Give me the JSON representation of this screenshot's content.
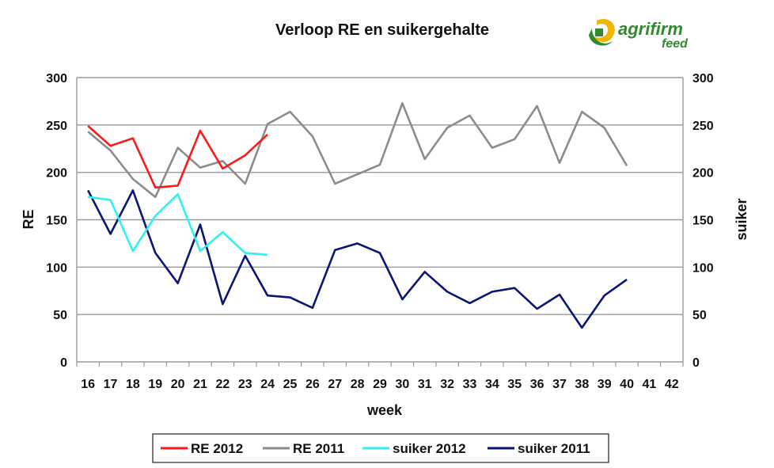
{
  "logo": {
    "brand": "agrifirm",
    "sub": "feed"
  },
  "chart_data": {
    "type": "line",
    "title": "Verloop RE en suikergehalte",
    "xlabel": "week",
    "ylabel": "RE",
    "y2label": "suiker",
    "ylim": [
      0,
      300
    ],
    "y2lim": [
      0,
      300
    ],
    "yticks": [
      0,
      50,
      100,
      150,
      200,
      250,
      300
    ],
    "grid": true,
    "legend_position": "bottom",
    "categories": [
      "16",
      "17",
      "18",
      "19",
      "20",
      "21",
      "22",
      "23",
      "24",
      "25",
      "26",
      "27",
      "28",
      "29",
      "30",
      "31",
      "32",
      "33",
      "34",
      "35",
      "36",
      "37",
      "38",
      "39",
      "40",
      "41",
      "42"
    ],
    "series": [
      {
        "name": "RE 2012",
        "color": "#ff1a1a",
        "values": [
          249,
          228,
          236,
          184,
          186,
          244,
          204,
          218,
          240,
          null,
          null,
          null,
          null,
          null,
          null,
          null,
          null,
          null,
          null,
          null,
          null,
          null,
          null,
          null,
          null,
          null,
          null
        ]
      },
      {
        "name": "RE 2011",
        "color": "#8c8c8c",
        "values": [
          243,
          223,
          193,
          174,
          226,
          205,
          212,
          188,
          251,
          264,
          238,
          188,
          198,
          208,
          273,
          214,
          247,
          260,
          226,
          235,
          270,
          210,
          264,
          247,
          207,
          null,
          null
        ]
      },
      {
        "name": "suiker 2012",
        "color": "#33f0f0",
        "values": [
          174,
          171,
          117,
          154,
          177,
          117,
          137,
          115,
          113,
          null,
          null,
          null,
          null,
          null,
          null,
          null,
          null,
          null,
          null,
          null,
          null,
          null,
          null,
          null,
          null,
          null,
          null
        ]
      },
      {
        "name": "suiker 2011",
        "color": "#0a1575",
        "values": [
          181,
          135,
          181,
          115,
          83,
          145,
          61,
          112,
          70,
          68,
          57,
          118,
          125,
          115,
          66,
          95,
          74,
          62,
          74,
          78,
          56,
          71,
          36,
          70,
          87,
          null,
          null
        ]
      }
    ]
  }
}
